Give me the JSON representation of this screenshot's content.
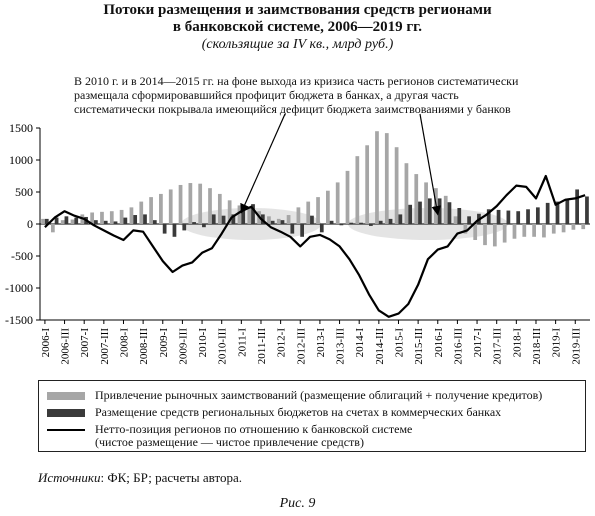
{
  "header": {
    "title_line1": "Потоки размещения и заимствования средств регионами",
    "title_line2": "в банковской системе, 2006—2019 гг.",
    "subtitle": "(скользящие за IV кв., млрд руб.)"
  },
  "annotation": {
    "line1": "В 2010 г. и в 2014—2015 гг. на фоне выхода из кризиса часть регионов систематически",
    "line2": "размещала сформировавшийся профицит бюджета в банках, а другая часть",
    "line3": "систематически покрывала имеющийся дефицит бюджета заимствованиями у банков"
  },
  "legend": {
    "item1": "Привлечение рыночных заимствований (размещение облигаций + получение кредитов)",
    "item2": "Размещение средств региональных бюджетов на счетах в коммерческих банках",
    "item3_line1": "Нетто-позиция регионов по отношению к банковской системе",
    "item3_line2": "(чистое размещение — чистое привлечение средств)"
  },
  "source": {
    "label": "Источники",
    "text": ": ФК; БР; расчеты автора."
  },
  "caption": "Рис. 9",
  "colors": {
    "borrowing": "#a6a6a6",
    "placement": "#3a3a3a",
    "net_line": "#000000",
    "ellipse": "#d9d9d9"
  },
  "chart_data": {
    "type": "bar",
    "ylim": [
      -1500,
      1500
    ],
    "yticks": [
      -1500,
      -1000,
      -500,
      0,
      500,
      1000,
      1500
    ],
    "ytick_labels": [
      "-1500",
      "-1000",
      "-500",
      "0",
      "500",
      "1000",
      "1500"
    ],
    "categories": [
      "2006-I",
      "2006-II",
      "2006-III",
      "2006-IV",
      "2007-I",
      "2007-II",
      "2007-III",
      "2007-IV",
      "2008-I",
      "2008-II",
      "2008-III",
      "2008-IV",
      "2009-I",
      "2009-II",
      "2009-III",
      "2009-IV",
      "2010-I",
      "2010-II",
      "2010-III",
      "2010-IV",
      "2011-I",
      "2011-II",
      "2011-III",
      "2011-IV",
      "2012-I",
      "2012-II",
      "2012-III",
      "2012-IV",
      "2013-I",
      "2013-II",
      "2013-III",
      "2013-IV",
      "2014-I",
      "2014-II",
      "2014-III",
      "2014-IV",
      "2015-I",
      "2015-II",
      "2015-III",
      "2015-IV",
      "2016-I",
      "2016-II",
      "2016-III",
      "2016-IV",
      "2017-I",
      "2017-II",
      "2017-III",
      "2017-IV",
      "2018-I",
      "2018-II",
      "2018-III",
      "2018-IV",
      "2019-I",
      "2019-II",
      "2019-III",
      "2019-IV"
    ],
    "xtick_labels": [
      "2006-I",
      "2006-III",
      "2007-I",
      "2007-III",
      "2008-I",
      "2008-III",
      "2009-I",
      "2009-III",
      "2010-I",
      "2010-III",
      "2011-I",
      "2011-III",
      "2012-I",
      "2012-III",
      "2013-I",
      "2013-III",
      "2014-I",
      "2014-III",
      "2015-I",
      "2015-III",
      "2016-I",
      "2016-III",
      "2017-I",
      "2017-III",
      "2018-I",
      "2018-III",
      "2019-I",
      "2019-III"
    ],
    "series": [
      {
        "name": "Привлечение рыночных заимствований (размещение облигаций + получение кредитов)",
        "kind": "bar",
        "values": [
          80,
          -130,
          60,
          70,
          150,
          180,
          190,
          200,
          220,
          260,
          350,
          420,
          470,
          540,
          610,
          640,
          630,
          560,
          470,
          370,
          290,
          260,
          200,
          120,
          80,
          140,
          260,
          350,
          420,
          520,
          650,
          830,
          1060,
          1230,
          1450,
          1420,
          1200,
          950,
          780,
          650,
          560,
          440,
          120,
          -150,
          -250,
          -330,
          -350,
          -290,
          -230,
          -200,
          -200,
          -210,
          -150,
          -130,
          -90,
          -80
        ]
      },
      {
        "name": "Размещение средств региональных бюджетов на счетах в коммерческих банках",
        "kind": "bar",
        "values": [
          80,
          100,
          120,
          100,
          110,
          60,
          50,
          40,
          100,
          140,
          150,
          60,
          -150,
          -200,
          -100,
          30,
          -50,
          150,
          130,
          150,
          250,
          310,
          150,
          50,
          60,
          -150,
          -200,
          130,
          -130,
          50,
          -20,
          20,
          20,
          -30,
          50,
          80,
          150,
          300,
          350,
          400,
          400,
          340,
          250,
          120,
          160,
          230,
          220,
          210,
          200,
          230,
          260,
          330,
          350,
          390,
          540,
          430
        ]
      },
      {
        "name": "Нетто-позиция регионов по отношению к банковской системе",
        "kind": "line",
        "values": [
          -50,
          100,
          200,
          130,
          80,
          -20,
          -100,
          -180,
          -250,
          -100,
          -120,
          -350,
          -580,
          -750,
          -650,
          -600,
          -450,
          -380,
          -150,
          100,
          200,
          270,
          80,
          -50,
          -120,
          -200,
          -350,
          -200,
          -170,
          -240,
          -350,
          -550,
          -800,
          -1100,
          -1350,
          -1450,
          -1400,
          -1250,
          -950,
          -550,
          -400,
          -350,
          -150,
          -100,
          50,
          150,
          280,
          450,
          600,
          580,
          400,
          750,
          300,
          380,
          400,
          450
        ]
      }
    ],
    "ellipses": [
      {
        "center_category": "2011-II",
        "note": "highlight 2010-2011"
      },
      {
        "center_category": "2015-IV",
        "note": "highlight 2014-2015"
      }
    ]
  }
}
